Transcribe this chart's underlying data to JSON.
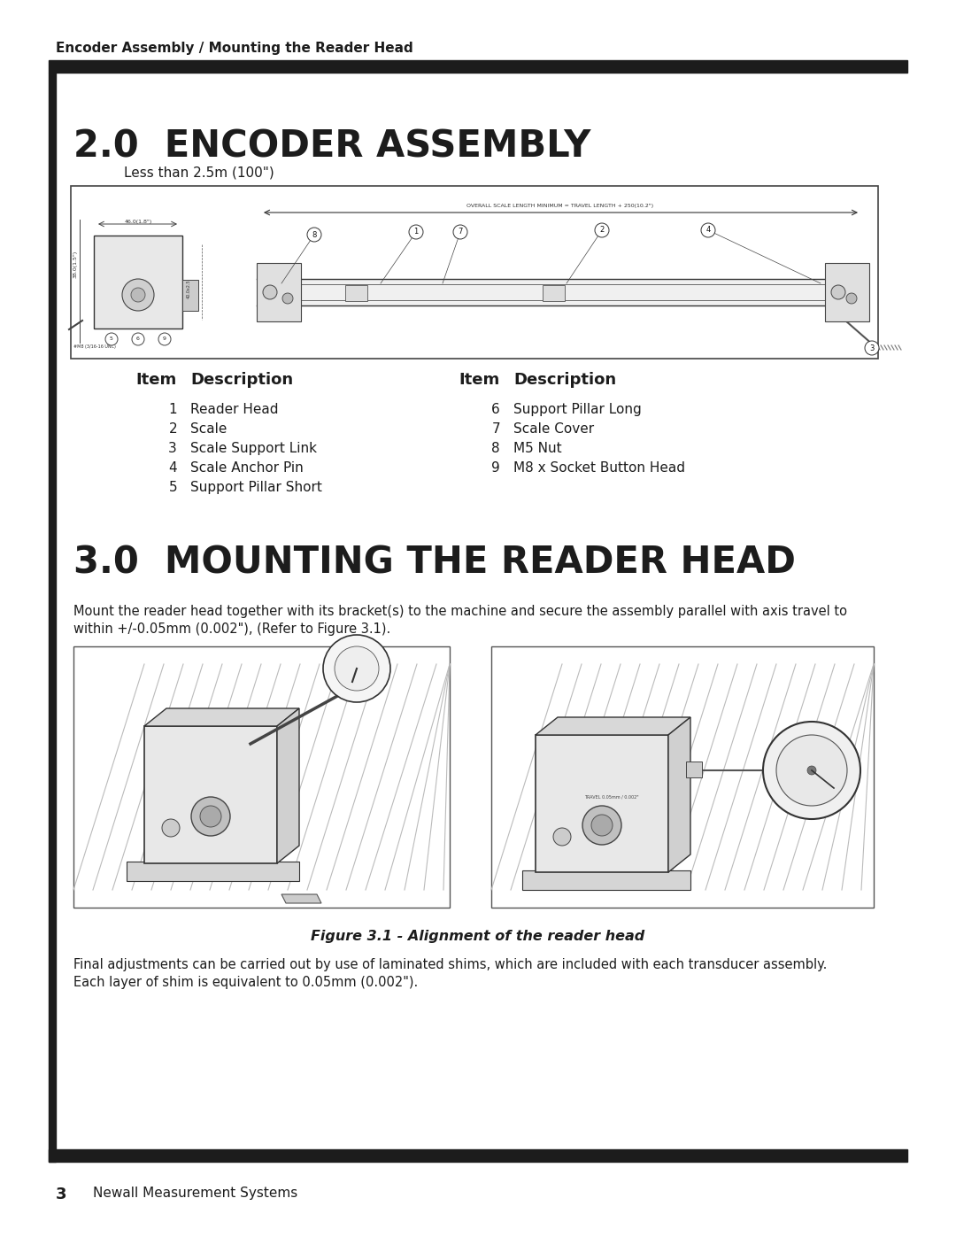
{
  "page_title": "Encoder Assembly / Mounting the Reader Head",
  "section2_title": "2.0  ENCODER ASSEMBLY",
  "section2_subtitle": "Less than 2.5m (100\")",
  "table_headers_left": [
    "Item",
    "Description"
  ],
  "table_headers_right": [
    "Item",
    "Description"
  ],
  "items_col1": [
    [
      "1",
      "Reader Head"
    ],
    [
      "2",
      "Scale"
    ],
    [
      "3",
      "Scale Support Link"
    ],
    [
      "4",
      "Scale Anchor Pin"
    ],
    [
      "5",
      "Support Pillar Short"
    ]
  ],
  "items_col2": [
    [
      "6",
      "Support Pillar Long"
    ],
    [
      "7",
      "Scale Cover"
    ],
    [
      "8",
      "M5 Nut"
    ],
    [
      "9",
      "M8 x Socket Button Head"
    ]
  ],
  "section3_title": "3.0  MOUNTING THE READER HEAD",
  "section3_body1": "Mount the reader head together with its bracket(s) to the machine and secure the assembly parallel with axis travel to",
  "section3_body2": "within +/-0.05mm (0.002\"), (Refer to Figure 3.1).",
  "figure_caption": "Figure 3.1 - Alignment of the reader head",
  "final_text1": "Final adjustments can be carried out by use of laminated shims, which are included with each transducer assembly.",
  "final_text2": "Each layer of shim is equivalent to 0.05mm (0.002\").",
  "footer_page": "3",
  "footer_text": "Newall Measurement Systems",
  "bg_color": "#ffffff",
  "header_bar_color": "#1c1c1c",
  "sidebar_color": "#1c1c1c",
  "text_color": "#1c1c1c",
  "scale_annotation": "OVERALL SCALE LENGTH MINIMUM = TRAVEL LENGTH + 250(10.2\")"
}
